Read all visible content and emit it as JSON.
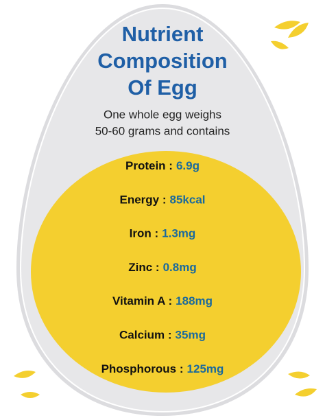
{
  "header": {
    "title_lines": [
      "Nutrient",
      "Composition",
      "Of Egg"
    ],
    "subtitle_lines": [
      "One whole egg weighs",
      "50-60 grams and contains"
    ]
  },
  "nutrients": [
    {
      "label": "Protein :",
      "value": "6.9g"
    },
    {
      "label": "Energy :",
      "value": "85kcal"
    },
    {
      "label": "Iron :",
      "value": "1.3mg"
    },
    {
      "label": "Zinc :",
      "value": "0.8mg"
    },
    {
      "label": "Vitamin A :",
      "value": "188mg"
    },
    {
      "label": "Calcium :",
      "value": "35mg"
    },
    {
      "label": "Phosphorous :",
      "value": "125mg"
    }
  ]
}
